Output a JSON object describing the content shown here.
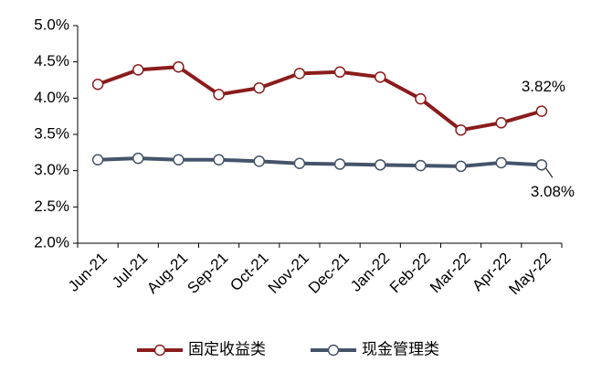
{
  "chart_data": {
    "type": "line",
    "categories": [
      "Jun-21",
      "Jul-21",
      "Aug-21",
      "Sep-21",
      "Oct-21",
      "Nov-21",
      "Dec-21",
      "Jan-22",
      "Feb-22",
      "Mar-22",
      "Apr-22",
      "May-22"
    ],
    "series": [
      {
        "name": "固定收益类",
        "color": "#8b1c1c",
        "values": [
          4.19,
          4.39,
          4.43,
          4.05,
          4.14,
          4.34,
          4.36,
          4.29,
          3.99,
          3.56,
          3.66,
          3.82
        ],
        "value_labels": [
          null,
          null,
          null,
          null,
          null,
          null,
          null,
          null,
          null,
          null,
          null,
          "3.82%"
        ]
      },
      {
        "name": "现金管理类",
        "color": "#44546a",
        "values": [
          3.15,
          3.17,
          3.15,
          3.15,
          3.13,
          3.1,
          3.09,
          3.08,
          3.07,
          3.06,
          3.11,
          3.08
        ],
        "value_labels": [
          null,
          null,
          null,
          null,
          null,
          null,
          null,
          null,
          null,
          null,
          null,
          "3.08%"
        ]
      }
    ],
    "ylim": [
      2.0,
      5.0
    ],
    "yticks": [
      {
        "value": 2.0,
        "label": "2.0%"
      },
      {
        "value": 2.5,
        "label": "2.5%"
      },
      {
        "value": 3.0,
        "label": "3.0%"
      },
      {
        "value": 3.5,
        "label": "3.5%"
      },
      {
        "value": 4.0,
        "label": "4.0%"
      },
      {
        "value": 4.5,
        "label": "4.5%"
      },
      {
        "value": 5.0,
        "label": "5.0%"
      }
    ],
    "grid": false,
    "legend": "bottom"
  }
}
